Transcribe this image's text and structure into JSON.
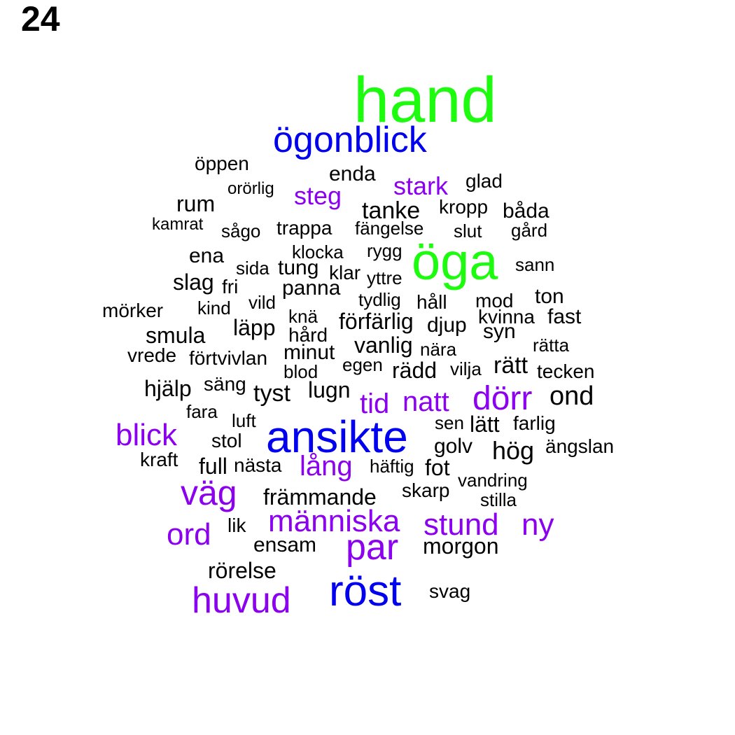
{
  "panel": {
    "number": "24"
  },
  "colors": {
    "green": "#1dfc0f",
    "blue": "#0000ee",
    "purple": "#8b00ee",
    "black": "#000000"
  },
  "words": [
    {
      "text": "hand",
      "color": "green"
    },
    {
      "text": "öga",
      "color": "green"
    },
    {
      "text": "ögonblick",
      "color": "blue"
    },
    {
      "text": "ansikte",
      "color": "blue"
    },
    {
      "text": "röst",
      "color": "blue"
    },
    {
      "text": "stark",
      "color": "purple"
    },
    {
      "text": "steg",
      "color": "purple"
    },
    {
      "text": "dörr",
      "color": "purple"
    },
    {
      "text": "natt",
      "color": "purple"
    },
    {
      "text": "tid",
      "color": "purple"
    },
    {
      "text": "blick",
      "color": "purple"
    },
    {
      "text": "lång",
      "color": "purple"
    },
    {
      "text": "väg",
      "color": "purple"
    },
    {
      "text": "människa",
      "color": "purple"
    },
    {
      "text": "stund",
      "color": "purple"
    },
    {
      "text": "ny",
      "color": "purple"
    },
    {
      "text": "ord",
      "color": "purple"
    },
    {
      "text": "par",
      "color": "purple"
    },
    {
      "text": "huvud",
      "color": "purple"
    },
    {
      "text": "öppen",
      "color": "black"
    },
    {
      "text": "enda",
      "color": "black"
    },
    {
      "text": "glad",
      "color": "black"
    },
    {
      "text": "orörlig",
      "color": "black"
    },
    {
      "text": "rum",
      "color": "black"
    },
    {
      "text": "tanke",
      "color": "black"
    },
    {
      "text": "kropp",
      "color": "black"
    },
    {
      "text": "båda",
      "color": "black"
    },
    {
      "text": "kamrat",
      "color": "black"
    },
    {
      "text": "sågo",
      "color": "black"
    },
    {
      "text": "trappa",
      "color": "black"
    },
    {
      "text": "fängelse",
      "color": "black"
    },
    {
      "text": "slut",
      "color": "black"
    },
    {
      "text": "gård",
      "color": "black"
    },
    {
      "text": "ena",
      "color": "black"
    },
    {
      "text": "klocka",
      "color": "black"
    },
    {
      "text": "rygg",
      "color": "black"
    },
    {
      "text": "sann",
      "color": "black"
    },
    {
      "text": "sida",
      "color": "black"
    },
    {
      "text": "tung",
      "color": "black"
    },
    {
      "text": "klar",
      "color": "black"
    },
    {
      "text": "yttre",
      "color": "black"
    },
    {
      "text": "slag",
      "color": "black"
    },
    {
      "text": "fri",
      "color": "black"
    },
    {
      "text": "panna",
      "color": "black"
    },
    {
      "text": "tydlig",
      "color": "black"
    },
    {
      "text": "håll",
      "color": "black"
    },
    {
      "text": "mod",
      "color": "black"
    },
    {
      "text": "ton",
      "color": "black"
    },
    {
      "text": "mörker",
      "color": "black"
    },
    {
      "text": "kind",
      "color": "black"
    },
    {
      "text": "vild",
      "color": "black"
    },
    {
      "text": "knä",
      "color": "black"
    },
    {
      "text": "förfärlig",
      "color": "black"
    },
    {
      "text": "djup",
      "color": "black"
    },
    {
      "text": "kvinna",
      "color": "black"
    },
    {
      "text": "fast",
      "color": "black"
    },
    {
      "text": "läpp",
      "color": "black"
    },
    {
      "text": "hård",
      "color": "black"
    },
    {
      "text": "syn",
      "color": "black"
    },
    {
      "text": "smula",
      "color": "black"
    },
    {
      "text": "vanlig",
      "color": "black"
    },
    {
      "text": "nära",
      "color": "black"
    },
    {
      "text": "rätta",
      "color": "black"
    },
    {
      "text": "vrede",
      "color": "black"
    },
    {
      "text": "förtvivlan",
      "color": "black"
    },
    {
      "text": "minut",
      "color": "black"
    },
    {
      "text": "egen",
      "color": "black"
    },
    {
      "text": "rädd",
      "color": "black"
    },
    {
      "text": "vilja",
      "color": "black"
    },
    {
      "text": "rätt",
      "color": "black"
    },
    {
      "text": "tecken",
      "color": "black"
    },
    {
      "text": "blod",
      "color": "black"
    },
    {
      "text": "hjälp",
      "color": "black"
    },
    {
      "text": "säng",
      "color": "black"
    },
    {
      "text": "tyst",
      "color": "black"
    },
    {
      "text": "lugn",
      "color": "black"
    },
    {
      "text": "ond",
      "color": "black"
    },
    {
      "text": "fara",
      "color": "black"
    },
    {
      "text": "luft",
      "color": "black"
    },
    {
      "text": "sen",
      "color": "black"
    },
    {
      "text": "lätt",
      "color": "black"
    },
    {
      "text": "farlig",
      "color": "black"
    },
    {
      "text": "stol",
      "color": "black"
    },
    {
      "text": "golv",
      "color": "black"
    },
    {
      "text": "hög",
      "color": "black"
    },
    {
      "text": "ängslan",
      "color": "black"
    },
    {
      "text": "kraft",
      "color": "black"
    },
    {
      "text": "full",
      "color": "black"
    },
    {
      "text": "nästa",
      "color": "black"
    },
    {
      "text": "häftig",
      "color": "black"
    },
    {
      "text": "fot",
      "color": "black"
    },
    {
      "text": "vandring",
      "color": "black"
    },
    {
      "text": "främmande",
      "color": "black"
    },
    {
      "text": "skarp",
      "color": "black"
    },
    {
      "text": "stilla",
      "color": "black"
    },
    {
      "text": "lik",
      "color": "black"
    },
    {
      "text": "ensam",
      "color": "black"
    },
    {
      "text": "morgon",
      "color": "black"
    },
    {
      "text": "rörelse",
      "color": "black"
    },
    {
      "text": "svag",
      "color": "black"
    }
  ]
}
